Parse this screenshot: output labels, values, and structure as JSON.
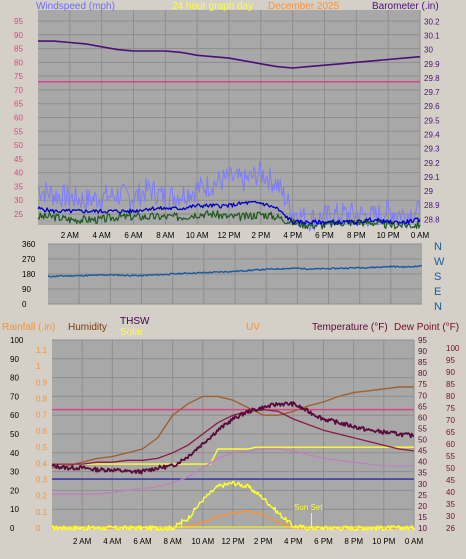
{
  "header": {
    "top_left": "Windspeed (mph)",
    "top_center": "24 hour graph day",
    "top_date": "December 2025",
    "top_right": "Barometer (.in)"
  },
  "direction_labels": [
    "N",
    "W",
    "S",
    "E",
    "N"
  ],
  "lower_header": {
    "rainfall": "Rainfall (.in)",
    "humidity": "Humidity",
    "thsw": "THSW",
    "solar": "Solar",
    "uv": "UV",
    "temperature": "Temperature (°F)",
    "dew_point": "Dew Point (°F)"
  },
  "annotations": {
    "sun_set": "Sun Set"
  },
  "colors": {
    "windspeed": "#7c7cff",
    "wind_avg": "#0000c8",
    "wind_green": "#1f5a1f",
    "barometer": "#4b0f7a",
    "pink": "#e0408a",
    "direction": "#1a5aa0",
    "temperature": "#5a0a3c",
    "humidity": "#a06030",
    "solar": "#ffff30",
    "uv": "#ff9030",
    "thsw": "#c080c0"
  },
  "chart_data": [
    {
      "type": "line",
      "name": "wind-barometer",
      "x_ticks": [
        "2 AM",
        "4 AM",
        "6 AM",
        "8 AM",
        "10 AM",
        "12 PM",
        "2 PM",
        "4 PM",
        "6 PM",
        "8 PM",
        "10 PM",
        "0 AM"
      ],
      "y_left_ticks": [
        "25",
        "30",
        "35",
        "40",
        "45",
        "50",
        "55",
        "60",
        "65",
        "70",
        "75",
        "80",
        "85",
        "90",
        "95"
      ],
      "y_right_ticks": [
        "28.8",
        "28.9",
        "29",
        "29.1",
        "29.2",
        "29.3",
        "29.4",
        "29.5",
        "29.6",
        "29.7",
        "29.8",
        "29.9",
        "30",
        "30.1",
        "30.2"
      ],
      "ylim_left": [
        21,
        99
      ],
      "ylim_right": [
        28.76,
        30.28
      ],
      "series": [
        {
          "name": "Barometer (.in)",
          "axis": "right",
          "x": [
            0,
            1,
            2,
            3,
            4,
            5,
            6,
            7,
            8,
            9,
            10,
            11,
            12,
            13,
            14,
            15,
            16,
            17,
            18,
            19,
            20,
            21,
            22,
            23,
            24
          ],
          "values": [
            30.06,
            30.06,
            30.05,
            30.04,
            30.02,
            30.0,
            29.99,
            29.99,
            29.99,
            29.98,
            29.96,
            29.95,
            29.94,
            29.92,
            29.9,
            29.88,
            29.87,
            29.88,
            29.89,
            29.9,
            29.91,
            29.92,
            29.93,
            29.94,
            29.95
          ]
        },
        {
          "name": "Windspeed (mph)",
          "axis": "left",
          "x": [
            0,
            1,
            2,
            3,
            4,
            5,
            6,
            7,
            8,
            9,
            10,
            11,
            12,
            13,
            14,
            15,
            16,
            17,
            18,
            19,
            20,
            21,
            22,
            23,
            24
          ],
          "values": [
            34,
            32,
            31,
            30,
            31,
            32,
            31,
            34,
            31,
            32,
            34,
            36,
            38,
            37,
            40,
            36,
            26,
            23,
            24,
            25,
            25,
            24,
            26,
            25,
            26
          ]
        },
        {
          "name": "wind-average",
          "axis": "left",
          "x": [
            0,
            1,
            2,
            3,
            4,
            5,
            6,
            7,
            8,
            9,
            10,
            11,
            12,
            13,
            14,
            15,
            16,
            17,
            18,
            19,
            20,
            21,
            22,
            23,
            24
          ],
          "values": [
            27,
            26,
            26,
            26,
            26,
            26,
            26,
            27,
            27,
            27,
            28,
            28,
            28,
            29,
            29,
            27,
            22,
            22,
            22,
            22,
            22,
            23,
            22,
            22,
            23
          ]
        },
        {
          "name": "wind-green",
          "axis": "left",
          "x": [
            0,
            1,
            2,
            3,
            4,
            5,
            6,
            7,
            8,
            9,
            10,
            11,
            12,
            13,
            14,
            15,
            16,
            17,
            18,
            19,
            20,
            21,
            22,
            23,
            24
          ],
          "values": [
            24,
            24,
            23,
            23,
            23,
            24,
            24,
            24,
            24,
            24,
            25,
            25,
            24,
            24,
            25,
            24,
            22,
            21,
            21,
            22,
            22,
            22,
            21,
            21,
            21
          ]
        },
        {
          "name": "pink-line",
          "axis": "left",
          "x": [
            0,
            24
          ],
          "values": [
            73,
            73
          ]
        }
      ]
    },
    {
      "type": "line",
      "name": "wind-direction",
      "x_ticks": [],
      "y_ticks": [
        "360",
        "270",
        "180",
        "90",
        "0"
      ],
      "ylim": [
        0,
        360
      ],
      "series": [
        {
          "name": "Wind Direction",
          "x": [
            0,
            1,
            2,
            3,
            4,
            5,
            6,
            7,
            8,
            9,
            10,
            11,
            12,
            13,
            14,
            15,
            16,
            17,
            18,
            19,
            20,
            21,
            22,
            23,
            24
          ],
          "values": [
            165,
            168,
            170,
            172,
            175,
            172,
            170,
            175,
            180,
            185,
            188,
            192,
            196,
            202,
            208,
            212,
            214,
            210,
            212,
            215,
            218,
            220,
            225,
            222,
            228
          ]
        }
      ]
    },
    {
      "type": "line",
      "name": "temperature-humidity",
      "x_ticks": [
        "2 AM",
        "4 AM",
        "6 AM",
        "8 AM",
        "10 AM",
        "12 PM",
        "2 PM",
        "4 PM",
        "6 PM",
        "8 PM",
        "10 PM",
        "0 AM"
      ],
      "y_left_ticks": [
        "0",
        "10",
        "20",
        "30",
        "40",
        "50",
        "60",
        "70",
        "80",
        "90",
        "100"
      ],
      "y_rain_ticks": [
        "0",
        "0.1",
        "0.2",
        "0.3",
        "0.4",
        "0.5",
        "0.6",
        "0.7",
        "0.8",
        "0.9",
        "1",
        "1.1"
      ],
      "y_right_ticks": [
        "10",
        "15",
        "20",
        "25",
        "30",
        "35",
        "40",
        "45",
        "50",
        "55",
        "60",
        "65",
        "70",
        "75",
        "80",
        "85",
        "90",
        "95"
      ],
      "y_right2_ticks": [
        "26",
        "30",
        "35",
        "40",
        "45",
        "50",
        "55",
        "60",
        "65",
        "70",
        "75",
        "80",
        "85",
        "90",
        "95",
        "100"
      ],
      "ylim_left": [
        0,
        100
      ],
      "series": [
        {
          "name": "Temperature (°F)",
          "x": [
            0,
            1,
            2,
            3,
            4,
            5,
            6,
            7,
            8,
            9,
            10,
            11,
            12,
            13,
            14,
            15,
            16,
            17,
            18,
            19,
            20,
            21,
            22,
            23,
            24
          ],
          "values": [
            33,
            32,
            32,
            31,
            31,
            30,
            30,
            32,
            33,
            38,
            45,
            52,
            58,
            62,
            64,
            66,
            66,
            62,
            58,
            56,
            54,
            52,
            51,
            50,
            49
          ]
        },
        {
          "name": "Dew Point (°F)",
          "x": [
            0,
            1,
            2,
            3,
            4,
            5,
            6,
            7,
            8,
            9,
            10,
            11,
            12,
            13,
            14,
            15,
            16,
            17,
            18,
            19,
            20,
            21,
            22,
            23,
            24
          ],
          "values": [
            34,
            34,
            34,
            35,
            35,
            36,
            36,
            37,
            40,
            44,
            50,
            56,
            60,
            62,
            63,
            62,
            58,
            55,
            52,
            50,
            48,
            46,
            44,
            42,
            41
          ]
        },
        {
          "name": "Humidity",
          "x": [
            0,
            1,
            2,
            3,
            4,
            5,
            6,
            7,
            8,
            9,
            10,
            11,
            12,
            13,
            14,
            15,
            16,
            17,
            18,
            19,
            20,
            21,
            22,
            23,
            24
          ],
          "values": [
            32,
            33,
            35,
            37,
            38,
            40,
            42,
            48,
            60,
            66,
            70,
            70,
            68,
            64,
            60,
            60,
            62,
            65,
            67,
            70,
            72,
            73,
            74,
            75,
            75
          ]
        },
        {
          "name": "THSW",
          "x": [
            0,
            1,
            2,
            3,
            4,
            5,
            6,
            7,
            8,
            9,
            10,
            11,
            12,
            13,
            14,
            15,
            16,
            17,
            18,
            19,
            20,
            21,
            22,
            23,
            24
          ],
          "values": [
            18,
            18,
            18,
            18,
            19,
            20,
            21,
            22,
            24,
            27,
            32,
            37,
            40,
            41,
            42,
            42,
            41,
            39,
            37,
            36,
            35,
            34,
            33,
            33,
            33
          ]
        },
        {
          "name": "Solar",
          "x": [
            0,
            1,
            2,
            3,
            4,
            5,
            6,
            7,
            8,
            9,
            10,
            11,
            12,
            13,
            14,
            15,
            16,
            17,
            18,
            19,
            20,
            21,
            22,
            23,
            24
          ],
          "values": [
            0,
            0,
            0,
            0,
            0,
            0,
            0,
            0,
            0,
            5,
            15,
            22,
            24,
            22,
            16,
            8,
            1,
            0,
            0,
            0,
            0,
            0,
            0,
            0,
            0
          ]
        },
        {
          "name": "UV",
          "x": [
            0,
            1,
            2,
            3,
            4,
            5,
            6,
            7,
            8,
            9,
            10,
            11,
            12,
            13,
            14,
            15,
            16,
            17,
            18,
            19,
            20,
            21,
            22,
            23,
            24
          ],
          "values": [
            0,
            0,
            0,
            0,
            0,
            0,
            0,
            0,
            0,
            1,
            3,
            6,
            8,
            9,
            7,
            3,
            0,
            0,
            0,
            0,
            0,
            0,
            0,
            0,
            0
          ]
        },
        {
          "name": "pink-line",
          "x": [
            0,
            24
          ],
          "values": [
            63,
            63
          ]
        },
        {
          "name": "yellow-step",
          "x": [
            0,
            8.5,
            10.5,
            11,
            13,
            13.5,
            24
          ],
          "values": [
            34,
            34,
            34,
            42,
            42,
            43,
            43
          ]
        },
        {
          "name": "blue-line",
          "x": [
            0,
            24
          ],
          "values": [
            26,
            26
          ]
        }
      ]
    }
  ]
}
